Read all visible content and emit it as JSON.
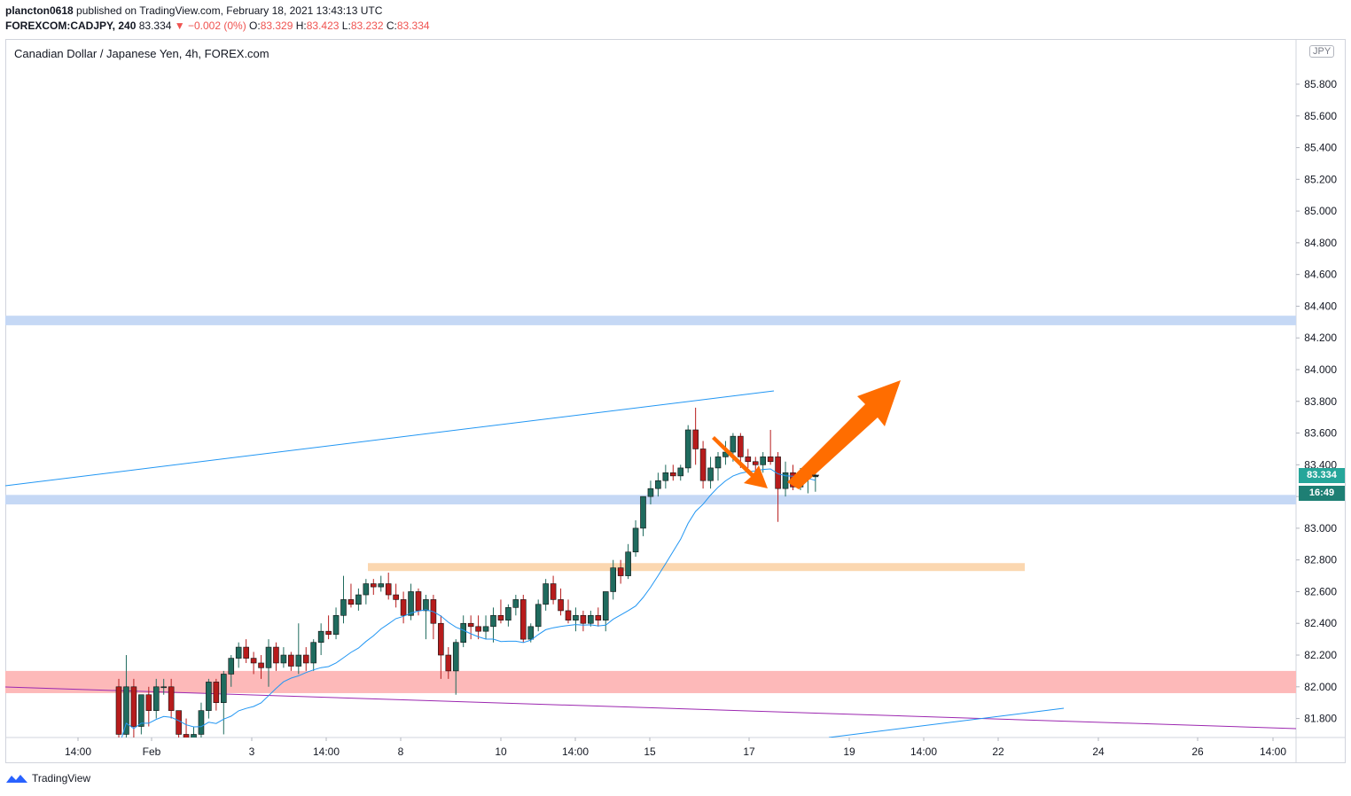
{
  "header": {
    "author": "plancton0618",
    "published_text": "published on TradingView.com, February 18, 2021 13:43:13 UTC",
    "symbol": "FOREXCOM:CADJPY, 240",
    "last": "83.334",
    "change": "▼ −0.002 (0%)",
    "o_label": "O:",
    "o": "83.329",
    "h_label": "H:",
    "h": "83.423",
    "l_label": "L:",
    "l": "83.232",
    "c_label": "C:",
    "c": "83.334"
  },
  "legend": "Canadian Dollar / Japanese Yen, 4h, FOREX.com",
  "currency_badge": "JPY",
  "price_tag": "83.334",
  "countdown_tag": "16:49",
  "footer": {
    "brand": "TradingView"
  },
  "colors": {
    "up": "#26a69a",
    "down": "#ef5350",
    "candle_up": "#1f6b5e",
    "candle_down": "#b71c1c",
    "ma": "#2196f3",
    "zone_blue": "#c5d8f5",
    "zone_orange": "#fbd7b0",
    "zone_red": "#fdb9b9",
    "arrow": "#ff6d00",
    "purple": "#9c27b0"
  },
  "chart_data": {
    "type": "candlestick",
    "title": "Canadian Dollar / Japanese Yen, 4h, FOREX.com",
    "ylim": [
      81.65,
      86.0
    ],
    "y_ticks": [
      "85.800",
      "85.600",
      "85.400",
      "85.200",
      "85.000",
      "84.800",
      "84.600",
      "84.400",
      "84.200",
      "84.000",
      "83.800",
      "83.600",
      "83.400",
      "83.200",
      "83.000",
      "82.800",
      "82.600",
      "82.400",
      "82.200",
      "82.000",
      "81.800"
    ],
    "x_ticks": [
      "14:00",
      "Feb",
      "3",
      "14:00",
      "8",
      "10",
      "14:00",
      "15",
      "17",
      "19",
      "14:00",
      "22",
      "24",
      "26",
      "14:00"
    ],
    "candles": [
      [
        82.0,
        82.05,
        81.55,
        81.7
      ],
      [
        81.7,
        82.2,
        81.65,
        82.0
      ],
      [
        82.0,
        82.05,
        81.65,
        81.75
      ],
      [
        81.75,
        81.95,
        81.7,
        81.95
      ],
      [
        81.95,
        82.0,
        81.75,
        81.85
      ],
      [
        81.85,
        82.05,
        81.8,
        82.0
      ],
      [
        82.0,
        82.05,
        81.95,
        82.0
      ],
      [
        82.0,
        82.05,
        81.8,
        81.85
      ],
      [
        81.85,
        81.85,
        81.65,
        81.7
      ],
      [
        81.7,
        81.8,
        81.55,
        81.6
      ],
      [
        81.6,
        81.75,
        81.55,
        81.7
      ],
      [
        81.7,
        81.9,
        81.68,
        81.85
      ],
      [
        81.85,
        82.05,
        81.8,
        82.03
      ],
      [
        82.03,
        82.05,
        81.85,
        81.9
      ],
      [
        81.9,
        82.1,
        81.7,
        82.08
      ],
      [
        82.08,
        82.2,
        82.0,
        82.18
      ],
      [
        82.18,
        82.28,
        82.12,
        82.25
      ],
      [
        82.25,
        82.3,
        82.15,
        82.18
      ],
      [
        82.18,
        82.22,
        82.08,
        82.15
      ],
      [
        82.15,
        82.2,
        82.05,
        82.12
      ],
      [
        82.12,
        82.3,
        82.0,
        82.25
      ],
      [
        82.25,
        82.28,
        82.1,
        82.15
      ],
      [
        82.15,
        82.25,
        82.12,
        82.2
      ],
      [
        82.2,
        82.22,
        82.1,
        82.13
      ],
      [
        82.13,
        82.4,
        82.08,
        82.2
      ],
      [
        82.2,
        82.25,
        82.1,
        82.15
      ],
      [
        82.15,
        82.3,
        82.1,
        82.28
      ],
      [
        82.28,
        82.4,
        82.2,
        82.35
      ],
      [
        82.35,
        82.45,
        82.3,
        82.33
      ],
      [
        82.33,
        82.5,
        82.3,
        82.45
      ],
      [
        82.45,
        82.7,
        82.4,
        82.55
      ],
      [
        82.55,
        82.65,
        82.5,
        82.52
      ],
      [
        82.52,
        82.62,
        82.48,
        82.58
      ],
      [
        82.58,
        82.68,
        82.52,
        82.65
      ],
      [
        82.65,
        82.68,
        82.58,
        82.63
      ],
      [
        82.63,
        82.7,
        82.6,
        82.65
      ],
      [
        82.65,
        82.72,
        82.55,
        82.58
      ],
      [
        82.58,
        82.65,
        82.5,
        82.55
      ],
      [
        82.55,
        82.6,
        82.4,
        82.45
      ],
      [
        82.45,
        82.65,
        82.42,
        82.6
      ],
      [
        82.6,
        82.62,
        82.45,
        82.48
      ],
      [
        82.48,
        82.58,
        82.3,
        82.55
      ],
      [
        82.55,
        82.58,
        82.3,
        82.4
      ],
      [
        82.4,
        82.45,
        82.05,
        82.2
      ],
      [
        82.2,
        82.25,
        82.05,
        82.1
      ],
      [
        82.1,
        82.3,
        81.95,
        82.28
      ],
      [
        82.28,
        82.45,
        82.25,
        82.4
      ],
      [
        82.4,
        82.45,
        82.3,
        82.38
      ],
      [
        82.38,
        82.45,
        82.3,
        82.35
      ],
      [
        82.35,
        82.45,
        82.3,
        82.38
      ],
      [
        82.38,
        82.5,
        82.28,
        82.45
      ],
      [
        82.45,
        82.55,
        82.4,
        82.42
      ],
      [
        82.42,
        82.52,
        82.38,
        82.5
      ],
      [
        82.5,
        82.58,
        82.45,
        82.55
      ],
      [
        82.55,
        82.58,
        82.28,
        82.3
      ],
      [
        82.3,
        82.4,
        82.28,
        82.38
      ],
      [
        82.38,
        82.55,
        82.35,
        82.52
      ],
      [
        82.52,
        82.68,
        82.48,
        82.65
      ],
      [
        82.65,
        82.7,
        82.52,
        82.55
      ],
      [
        82.55,
        82.62,
        82.45,
        82.48
      ],
      [
        82.48,
        82.55,
        82.4,
        82.42
      ],
      [
        82.42,
        82.5,
        82.35,
        82.45
      ],
      [
        82.45,
        82.48,
        82.35,
        82.4
      ],
      [
        82.4,
        82.48,
        82.38,
        82.45
      ],
      [
        82.45,
        82.5,
        82.38,
        82.42
      ],
      [
        82.42,
        82.6,
        82.35,
        82.6
      ],
      [
        82.6,
        82.8,
        82.55,
        82.75
      ],
      [
        82.75,
        82.8,
        82.65,
        82.7
      ],
      [
        82.7,
        82.9,
        82.68,
        82.85
      ],
      [
        82.85,
        83.05,
        82.82,
        83.0
      ],
      [
        83.0,
        83.2,
        82.95,
        83.2
      ],
      [
        83.2,
        83.3,
        83.15,
        83.25
      ],
      [
        83.25,
        83.35,
        83.2,
        83.3
      ],
      [
        83.3,
        83.4,
        83.25,
        83.35
      ],
      [
        83.35,
        83.4,
        83.3,
        83.33
      ],
      [
        83.33,
        83.4,
        83.3,
        83.38
      ],
      [
        83.38,
        83.65,
        83.35,
        83.62
      ],
      [
        83.62,
        83.76,
        83.4,
        83.5
      ],
      [
        83.5,
        83.55,
        83.25,
        83.3
      ],
      [
        83.3,
        83.45,
        83.25,
        83.38
      ],
      [
        83.38,
        83.48,
        83.3,
        83.45
      ],
      [
        83.45,
        83.55,
        83.4,
        83.48
      ],
      [
        83.48,
        83.6,
        83.42,
        83.58
      ],
      [
        83.58,
        83.6,
        83.38,
        83.45
      ],
      [
        83.45,
        83.5,
        83.38,
        83.42
      ],
      [
        83.42,
        83.45,
        83.32,
        83.4
      ],
      [
        83.4,
        83.48,
        83.35,
        83.45
      ],
      [
        83.45,
        83.62,
        83.4,
        83.42
      ],
      [
        83.45,
        83.48,
        83.04,
        83.25
      ],
      [
        83.25,
        83.42,
        83.2,
        83.35
      ],
      [
        83.35,
        83.4,
        83.24,
        83.26
      ],
      [
        83.26,
        83.38,
        83.24,
        83.32
      ],
      [
        83.32,
        83.4,
        83.22,
        83.35
      ],
      [
        83.33,
        83.42,
        83.23,
        83.33
      ]
    ],
    "ma_label": "moving average",
    "zones": [
      {
        "kind": "resistance",
        "from": 84.28,
        "to": 84.34
      },
      {
        "kind": "support",
        "from": 83.15,
        "to": 83.21
      },
      {
        "kind": "demand",
        "from": 82.73,
        "to": 82.78
      },
      {
        "kind": "demand",
        "from": 81.96,
        "to": 82.1
      }
    ]
  }
}
